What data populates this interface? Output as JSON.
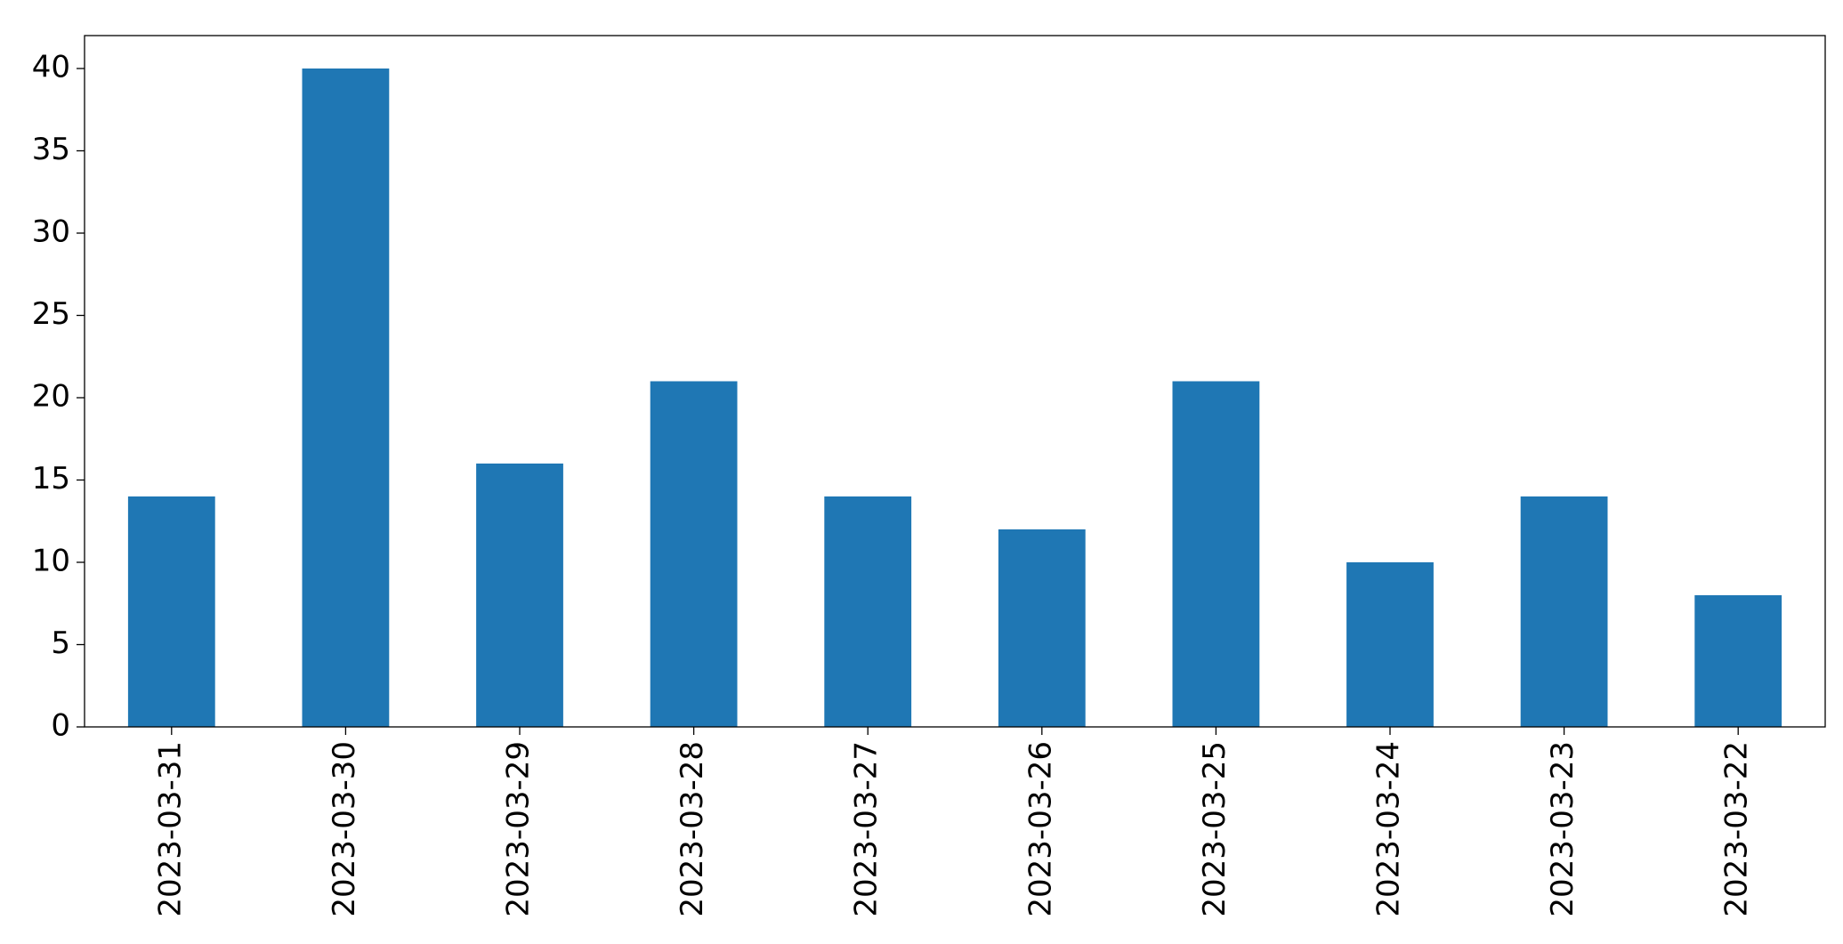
{
  "chart_data": {
    "type": "bar",
    "categories": [
      "2023-03-31",
      "2023-03-30",
      "2023-03-29",
      "2023-03-28",
      "2023-03-27",
      "2023-03-26",
      "2023-03-25",
      "2023-03-24",
      "2023-03-23",
      "2023-03-22"
    ],
    "values": [
      14,
      40,
      16,
      21,
      14,
      12,
      21,
      10,
      14,
      8
    ],
    "color": "#1f77b4",
    "ylim": [
      0,
      42
    ],
    "yticks": [
      0,
      5,
      10,
      15,
      20,
      25,
      30,
      35,
      40
    ],
    "grid": false
  }
}
